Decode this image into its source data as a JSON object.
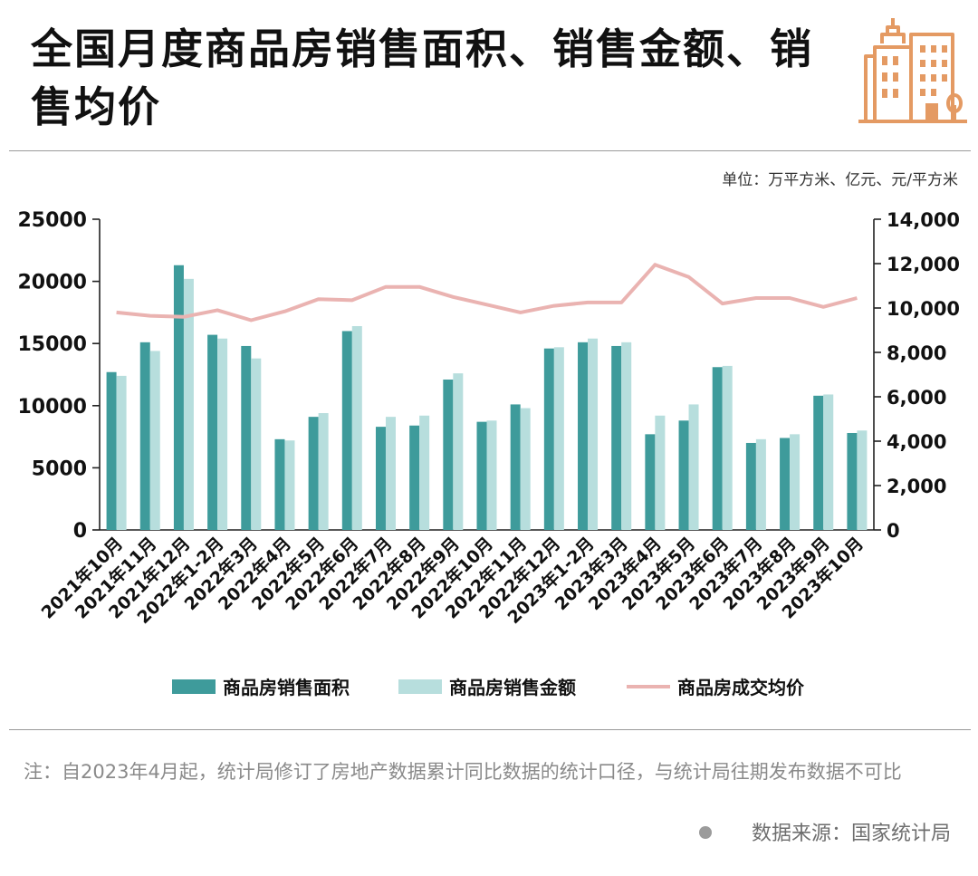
{
  "header": {
    "title": "全国月度商品房销售面积、销售金额、销售均价"
  },
  "unit_note": "单位：万平方米、亿元、元/平方米",
  "footnote": "注：自2023年4月起，统计局修订了房地产数据累计同比数据的统计口径，与统计局往期发布数据不可比",
  "source": "数据来源：国家统计局",
  "colors": {
    "area": "#3e9b9b",
    "amount": "#b7dedd",
    "price": "#eab3b1",
    "logo": "#e49a63",
    "axis": "#222222"
  },
  "chart_data": {
    "type": "bar",
    "categories": [
      "2021年10月",
      "2021年11月",
      "2021年12月",
      "2022年1-2月",
      "2022年3月",
      "2022年4月",
      "2022年5月",
      "2022年6月",
      "2022年7月",
      "2022年8月",
      "2022年9月",
      "2022年10月",
      "2022年11月",
      "2022年12月",
      "2023年1-2月",
      "2023年3月",
      "2023年4月",
      "2023年5月",
      "2023年6月",
      "2023年7月",
      "2023年8月",
      "2023年9月",
      "2023年10月"
    ],
    "series": [
      {
        "name": "商品房销售面积",
        "type": "bar",
        "axis": "left",
        "values": [
          12700,
          15100,
          21300,
          15700,
          14800,
          7300,
          9100,
          16000,
          8300,
          8400,
          12100,
          8700,
          10100,
          14600,
          15100,
          14800,
          7700,
          8800,
          13100,
          7000,
          7400,
          10800,
          7800
        ]
      },
      {
        "name": "商品房销售金额",
        "type": "bar",
        "axis": "left",
        "values": [
          12400,
          14400,
          20200,
          15400,
          13800,
          7200,
          9400,
          16400,
          9100,
          9200,
          12600,
          8800,
          9800,
          14700,
          15400,
          15100,
          9200,
          10100,
          13200,
          7300,
          7700,
          10900,
          8000
        ]
      },
      {
        "name": "商品房成交均价",
        "type": "line",
        "axis": "right",
        "values": [
          9800,
          9650,
          9600,
          9900,
          9450,
          9850,
          10400,
          10350,
          10950,
          10950,
          10500,
          10150,
          9800,
          10100,
          10250,
          10250,
          11950,
          11400,
          10200,
          10450,
          10450,
          10050,
          10450
        ]
      }
    ],
    "y_left": {
      "min": 0,
      "max": 25000,
      "ticks": [
        "0",
        "5000",
        "10000",
        "15000",
        "20000",
        "25000"
      ]
    },
    "y_right": {
      "min": 0,
      "max": 14000,
      "ticks": [
        "0",
        "2,000",
        "4,000",
        "6,000",
        "8,000",
        "10,000",
        "12,000",
        "14,000"
      ]
    },
    "legend": {
      "position": "bottom",
      "labels": [
        "商品房销售面积",
        "商品房销售金额",
        "商品房成交均价"
      ]
    }
  }
}
